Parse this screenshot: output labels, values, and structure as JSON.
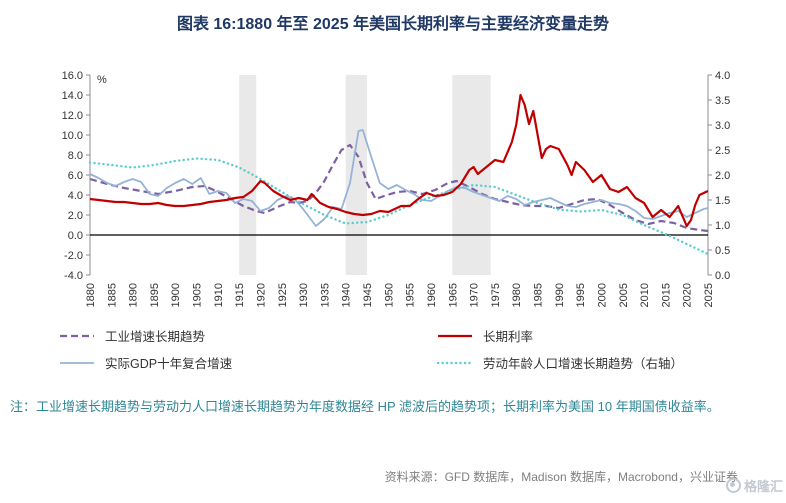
{
  "title": "图表 16:1880 年至 2025 年美国长期利率与主要经济变量走势",
  "note": "注：工业增速长期趋势与劳动力人口增速长期趋势为年度数据经 HP 滤波后的趋势项；长期利率为美国 10 年期国债收益率。",
  "source": "资料来源：GFD 数据库，Madison 数据库，Macrobond，兴业证券",
  "watermark": "格隆汇",
  "colors": {
    "title": "#1F3864",
    "note": "#2E8796",
    "source": "#7F7F7F",
    "band": "#E9E9E9",
    "axis": "#8C8C8C",
    "zero_line": "#000000",
    "tick_text": "#333333",
    "watermark": "#C3C9D2"
  },
  "chart_data": {
    "type": "line",
    "title": "图表 16:1880 年至 2025 年美国长期利率与主要经济变量走势",
    "x_range": [
      1880,
      2025
    ],
    "x_ticks": [
      1880,
      1885,
      1890,
      1895,
      1900,
      1905,
      1910,
      1915,
      1920,
      1925,
      1930,
      1935,
      1940,
      1945,
      1950,
      1955,
      1960,
      1965,
      1970,
      1975,
      1980,
      1985,
      1990,
      1995,
      2000,
      2005,
      2010,
      2015,
      2020,
      2025
    ],
    "left_axis": {
      "label": "%",
      "min": -4,
      "max": 16,
      "ticks": [
        16,
        14,
        12,
        10,
        8,
        6,
        4,
        2,
        0,
        -2,
        -4
      ]
    },
    "right_axis": {
      "min": 0,
      "max": 4,
      "ticks": [
        4,
        3.5,
        3,
        2.5,
        2,
        1.5,
        1,
        0.5,
        0
      ]
    },
    "grid": false,
    "legend_position": "bottom",
    "shaded_bands": [
      [
        1915,
        1919
      ],
      [
        1940,
        1945
      ],
      [
        1965,
        1974
      ]
    ],
    "legend_order": [
      0,
      3,
      1,
      2
    ],
    "series": [
      {
        "id": "industrial-growth-trend",
        "label": "工业增速长期趋势",
        "axis": "left",
        "color": "#7D60A4",
        "dash": "7 4",
        "width": 2.2,
        "round": false,
        "points": [
          [
            1880,
            5.6
          ],
          [
            1884,
            5.1
          ],
          [
            1888,
            4.7
          ],
          [
            1892,
            4.4
          ],
          [
            1896,
            4.1
          ],
          [
            1900,
            4.4
          ],
          [
            1904,
            4.8
          ],
          [
            1907,
            4.9
          ],
          [
            1910,
            4.3
          ],
          [
            1913,
            3.6
          ],
          [
            1916,
            2.9
          ],
          [
            1919,
            2.4
          ],
          [
            1921,
            2.2
          ],
          [
            1924,
            2.8
          ],
          [
            1927,
            3.3
          ],
          [
            1929,
            3.2
          ],
          [
            1931,
            3.4
          ],
          [
            1933,
            4.2
          ],
          [
            1935,
            5.4
          ],
          [
            1937,
            7.0
          ],
          [
            1939,
            8.5
          ],
          [
            1941,
            9.0
          ],
          [
            1943,
            7.8
          ],
          [
            1945,
            5.2
          ],
          [
            1947,
            3.6
          ],
          [
            1949,
            3.9
          ],
          [
            1952,
            4.3
          ],
          [
            1955,
            4.4
          ],
          [
            1958,
            4.1
          ],
          [
            1961,
            4.5
          ],
          [
            1964,
            5.2
          ],
          [
            1966,
            5.4
          ],
          [
            1969,
            4.8
          ],
          [
            1972,
            4.1
          ],
          [
            1975,
            3.6
          ],
          [
            1978,
            3.3
          ],
          [
            1981,
            3.0
          ],
          [
            1984,
            2.9
          ],
          [
            1987,
            2.9
          ],
          [
            1990,
            2.7
          ],
          [
            1993,
            3.1
          ],
          [
            1996,
            3.5
          ],
          [
            1999,
            3.6
          ],
          [
            2002,
            3.0
          ],
          [
            2005,
            2.2
          ],
          [
            2008,
            1.5
          ],
          [
            2011,
            1.1
          ],
          [
            2014,
            1.4
          ],
          [
            2017,
            1.2
          ],
          [
            2020,
            0.7
          ],
          [
            2023,
            0.5
          ],
          [
            2025,
            0.4
          ]
        ]
      },
      {
        "id": "real-gdp-10y-growth",
        "label": "实际GDP十年复合增速",
        "axis": "left",
        "color": "#95B3D7",
        "dash": null,
        "width": 1.8,
        "round": false,
        "points": [
          [
            1880,
            6.1
          ],
          [
            1882,
            5.7
          ],
          [
            1884,
            5.2
          ],
          [
            1886,
            4.9
          ],
          [
            1888,
            5.3
          ],
          [
            1890,
            5.6
          ],
          [
            1892,
            5.3
          ],
          [
            1894,
            4.1
          ],
          [
            1896,
            3.9
          ],
          [
            1898,
            4.7
          ],
          [
            1900,
            5.2
          ],
          [
            1902,
            5.6
          ],
          [
            1904,
            5.1
          ],
          [
            1906,
            5.7
          ],
          [
            1908,
            4.1
          ],
          [
            1910,
            4.4
          ],
          [
            1912,
            4.2
          ],
          [
            1914,
            3.2
          ],
          [
            1916,
            3.6
          ],
          [
            1918,
            3.4
          ],
          [
            1920,
            2.4
          ],
          [
            1922,
            2.7
          ],
          [
            1924,
            3.5
          ],
          [
            1926,
            3.9
          ],
          [
            1928,
            3.6
          ],
          [
            1930,
            2.6
          ],
          [
            1933,
            0.9
          ],
          [
            1935,
            1.6
          ],
          [
            1937,
            2.8
          ],
          [
            1939,
            2.6
          ],
          [
            1941,
            5.2
          ],
          [
            1943,
            10.4
          ],
          [
            1944,
            10.5
          ],
          [
            1946,
            7.8
          ],
          [
            1948,
            5.2
          ],
          [
            1950,
            4.6
          ],
          [
            1952,
            5.0
          ],
          [
            1954,
            4.5
          ],
          [
            1956,
            4.1
          ],
          [
            1958,
            3.5
          ],
          [
            1960,
            3.4
          ],
          [
            1962,
            3.9
          ],
          [
            1964,
            4.4
          ],
          [
            1966,
            4.8
          ],
          [
            1968,
            4.7
          ],
          [
            1970,
            4.3
          ],
          [
            1972,
            4.0
          ],
          [
            1974,
            3.7
          ],
          [
            1976,
            3.4
          ],
          [
            1978,
            3.9
          ],
          [
            1980,
            3.6
          ],
          [
            1982,
            3.0
          ],
          [
            1984,
            3.3
          ],
          [
            1986,
            3.5
          ],
          [
            1988,
            3.7
          ],
          [
            1990,
            3.3
          ],
          [
            1992,
            2.9
          ],
          [
            1994,
            2.8
          ],
          [
            1996,
            3.1
          ],
          [
            1998,
            3.3
          ],
          [
            2000,
            3.5
          ],
          [
            2002,
            3.2
          ],
          [
            2004,
            3.1
          ],
          [
            2006,
            2.9
          ],
          [
            2008,
            2.4
          ],
          [
            2010,
            1.7
          ],
          [
            2012,
            1.6
          ],
          [
            2014,
            1.9
          ],
          [
            2016,
            2.2
          ],
          [
            2018,
            2.4
          ],
          [
            2020,
            1.8
          ],
          [
            2022,
            2.2
          ],
          [
            2024,
            2.6
          ],
          [
            2025,
            2.7
          ]
        ]
      },
      {
        "id": "working-age-population-trend",
        "label": "劳动年龄人口增速长期趋势（右轴）",
        "axis": "right",
        "color": "#5BCBCE",
        "dash": "0.1 4.4",
        "width": 2.4,
        "round": true,
        "points": [
          [
            1880,
            2.25
          ],
          [
            1885,
            2.2
          ],
          [
            1890,
            2.15
          ],
          [
            1895,
            2.2
          ],
          [
            1900,
            2.28
          ],
          [
            1905,
            2.33
          ],
          [
            1910,
            2.3
          ],
          [
            1915,
            2.15
          ],
          [
            1920,
            1.92
          ],
          [
            1925,
            1.66
          ],
          [
            1930,
            1.42
          ],
          [
            1935,
            1.2
          ],
          [
            1940,
            1.03
          ],
          [
            1945,
            1.06
          ],
          [
            1950,
            1.2
          ],
          [
            1955,
            1.4
          ],
          [
            1960,
            1.56
          ],
          [
            1965,
            1.7
          ],
          [
            1970,
            1.8
          ],
          [
            1975,
            1.76
          ],
          [
            1980,
            1.6
          ],
          [
            1985,
            1.44
          ],
          [
            1990,
            1.31
          ],
          [
            1995,
            1.27
          ],
          [
            2000,
            1.3
          ],
          [
            2005,
            1.2
          ],
          [
            2010,
            1.0
          ],
          [
            2015,
            0.82
          ],
          [
            2020,
            0.62
          ],
          [
            2025,
            0.42
          ]
        ]
      },
      {
        "id": "long-term-rate",
        "label": "长期利率",
        "axis": "left",
        "color": "#C00000",
        "dash": null,
        "width": 2.2,
        "round": false,
        "points": [
          [
            1880,
            3.6
          ],
          [
            1882,
            3.5
          ],
          [
            1884,
            3.4
          ],
          [
            1886,
            3.3
          ],
          [
            1888,
            3.3
          ],
          [
            1890,
            3.2
          ],
          [
            1892,
            3.1
          ],
          [
            1894,
            3.1
          ],
          [
            1896,
            3.2
          ],
          [
            1898,
            3.0
          ],
          [
            1900,
            2.9
          ],
          [
            1902,
            2.9
          ],
          [
            1904,
            3.0
          ],
          [
            1906,
            3.1
          ],
          [
            1908,
            3.3
          ],
          [
            1910,
            3.4
          ],
          [
            1912,
            3.5
          ],
          [
            1914,
            3.7
          ],
          [
            1916,
            3.8
          ],
          [
            1918,
            4.4
          ],
          [
            1920,
            5.4
          ],
          [
            1921,
            5.2
          ],
          [
            1923,
            4.4
          ],
          [
            1925,
            3.9
          ],
          [
            1927,
            3.5
          ],
          [
            1929,
            3.7
          ],
          [
            1931,
            3.5
          ],
          [
            1932,
            4.1
          ],
          [
            1934,
            3.2
          ],
          [
            1936,
            2.8
          ],
          [
            1938,
            2.6
          ],
          [
            1940,
            2.3
          ],
          [
            1942,
            2.1
          ],
          [
            1944,
            2.0
          ],
          [
            1946,
            2.1
          ],
          [
            1948,
            2.4
          ],
          [
            1950,
            2.3
          ],
          [
            1953,
            2.9
          ],
          [
            1955,
            2.9
          ],
          [
            1957,
            3.6
          ],
          [
            1959,
            4.2
          ],
          [
            1961,
            3.9
          ],
          [
            1963,
            4.0
          ],
          [
            1965,
            4.3
          ],
          [
            1967,
            5.1
          ],
          [
            1969,
            6.5
          ],
          [
            1970,
            6.8
          ],
          [
            1971,
            6.1
          ],
          [
            1973,
            6.8
          ],
          [
            1975,
            7.5
          ],
          [
            1977,
            7.3
          ],
          [
            1979,
            9.3
          ],
          [
            1980,
            11.0
          ],
          [
            1981,
            14.0
          ],
          [
            1982,
            13.0
          ],
          [
            1983,
            11.1
          ],
          [
            1984,
            12.4
          ],
          [
            1986,
            7.7
          ],
          [
            1987,
            8.6
          ],
          [
            1988,
            8.9
          ],
          [
            1990,
            8.6
          ],
          [
            1992,
            7.0
          ],
          [
            1993,
            6.0
          ],
          [
            1994,
            7.3
          ],
          [
            1996,
            6.5
          ],
          [
            1998,
            5.3
          ],
          [
            2000,
            6.0
          ],
          [
            2002,
            4.6
          ],
          [
            2004,
            4.3
          ],
          [
            2006,
            4.8
          ],
          [
            2008,
            3.7
          ],
          [
            2010,
            3.2
          ],
          [
            2012,
            1.8
          ],
          [
            2014,
            2.5
          ],
          [
            2016,
            1.8
          ],
          [
            2018,
            2.9
          ],
          [
            2020,
            0.9
          ],
          [
            2021,
            1.5
          ],
          [
            2022,
            3.0
          ],
          [
            2023,
            4.0
          ],
          [
            2024,
            4.2
          ],
          [
            2025,
            4.4
          ]
        ]
      }
    ]
  }
}
